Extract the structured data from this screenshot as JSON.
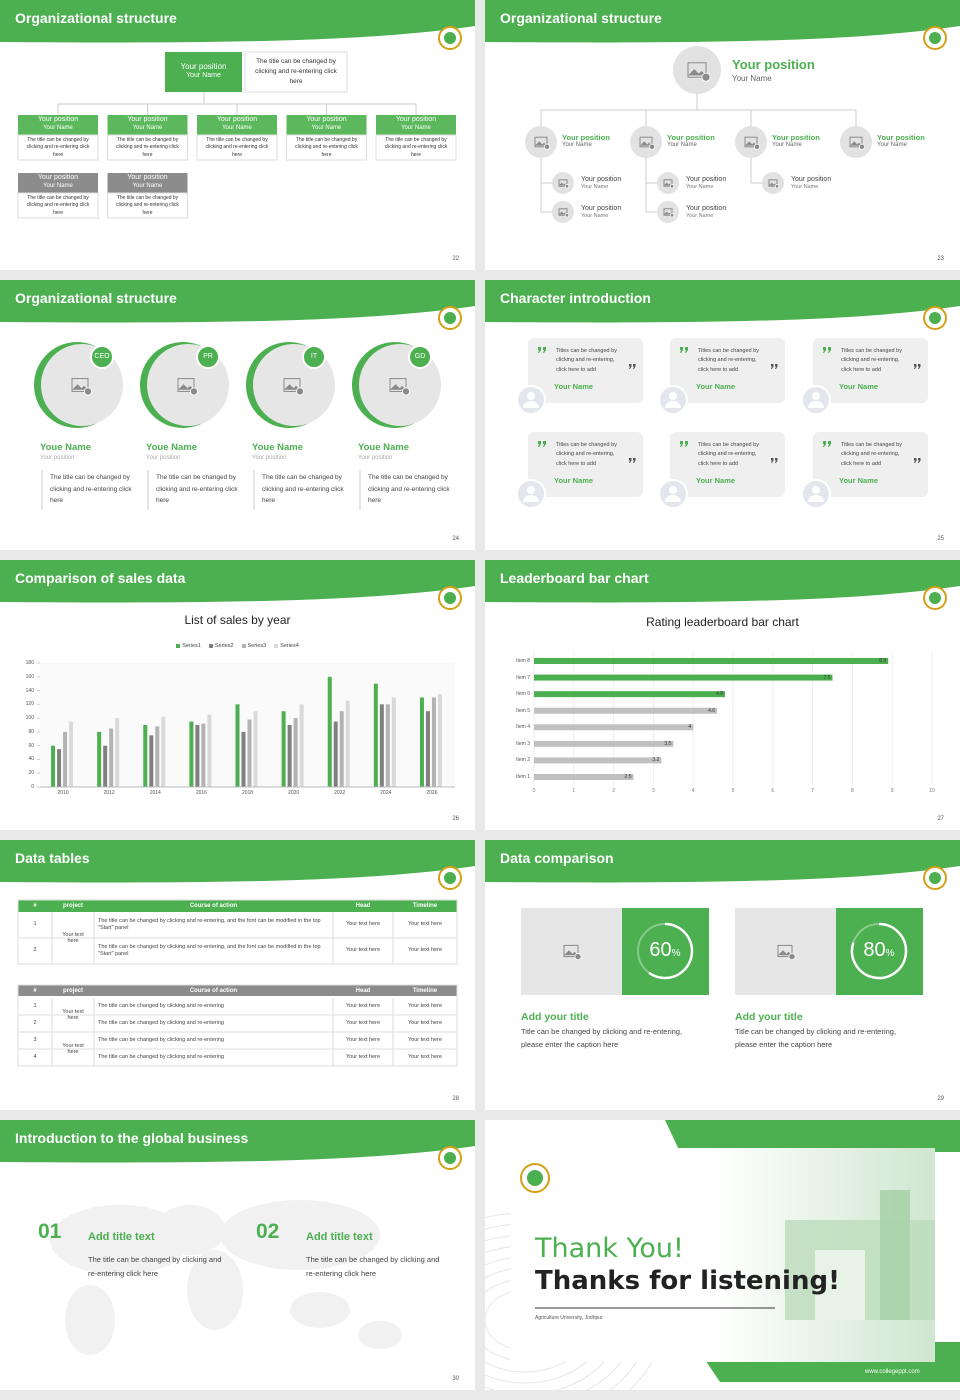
{
  "slides": [
    {
      "title": "Organizational structure",
      "page": "22",
      "top": {
        "position": "Your position",
        "name": "Your Name",
        "text": "The title can be changed by clicking and re-entering click here"
      },
      "green_boxes": [
        {
          "position": "Your position",
          "name": "Your Name",
          "text": "The title can be changed by clicking and re-entering click here"
        },
        {
          "position": "Your position",
          "name": "Your Name",
          "text": "The title can be changed by clicking and re-entering click here"
        },
        {
          "position": "Your position",
          "name": "Your Name",
          "text": "The title can be changed by clicking and re-entering click here"
        },
        {
          "position": "Your position",
          "name": "Your Name",
          "text": "The title can be changed by clicking and re-entering click here"
        },
        {
          "position": "Your position",
          "name": "Your Name",
          "text": "The title can be changed by clicking and re-entering click here"
        }
      ],
      "gray_boxes": [
        {
          "position": "Your position",
          "name": "Your Name",
          "text": "The title can be changed by clicking and re-entering click here"
        },
        {
          "position": "Your position",
          "name": "Your Name",
          "text": "The title can be changed by clicking and re-entering click here"
        }
      ]
    },
    {
      "title": "Organizational structure",
      "page": "23",
      "top": {
        "position": "Your position",
        "name": "Your Name"
      },
      "level2": [
        {
          "position": "Your position",
          "name": "Your Name"
        },
        {
          "position": "Your position",
          "name": "Your Name"
        },
        {
          "position": "Your position",
          "name": "Your Name"
        },
        {
          "position": "Your position",
          "name": "Your Name"
        }
      ],
      "level3": [
        {
          "position": "Your position",
          "name": "Your Name"
        },
        {
          "position": "Your position",
          "name": "Your Name"
        },
        {
          "position": "Your position",
          "name": "Your Name"
        },
        {
          "position": "Your position",
          "name": "Your Name"
        },
        {
          "position": "Your position",
          "name": "Your Name"
        }
      ]
    },
    {
      "title": "Organizational structure",
      "page": "24",
      "members": [
        {
          "badge": "CEO",
          "name": "Youe Name",
          "position": "Your position",
          "text": "The title can be changed by clicking and re-entering click here"
        },
        {
          "badge": "PR",
          "name": "Youe Name",
          "position": "Your position",
          "text": "The title can be changed by clicking and re-entering click here"
        },
        {
          "badge": "IT",
          "name": "Youe Name",
          "position": "Your position",
          "text": "The title can be changed by clicking and re-entering click here"
        },
        {
          "badge": "GD",
          "name": "Youe Name",
          "position": "Your position",
          "text": "The title can be changed by clicking and re-entering click here"
        }
      ]
    },
    {
      "title": "Character introduction",
      "page": "25",
      "cards": [
        {
          "text": "Titles can be changed by clicking and re-entering, click here to add",
          "name": "Your Name"
        },
        {
          "text": "Titles can be changed by clicking and re-entering, click here to add",
          "name": "Your Name"
        },
        {
          "text": "Titles can be changed by clicking and re-entering, click here to add",
          "name": "Your Name"
        },
        {
          "text": "Titles can be changed by clicking and re-entering, click here to add",
          "name": "Your Name"
        },
        {
          "text": "Titles can be changed by clicking and re-entering, click here to add",
          "name": "Your Name"
        },
        {
          "text": "Titles can be changed by clicking and re-entering, click here to add",
          "name": "Your Name"
        }
      ]
    },
    {
      "title": "Comparison of sales data",
      "page": "26",
      "chart": {
        "type": "bar",
        "title": "List of sales by year",
        "categories": [
          "2010",
          "2012",
          "2014",
          "2016",
          "2018",
          "2020",
          "2022",
          "2024",
          "2026"
        ],
        "series": [
          {
            "name": "Series1",
            "color": "#4caf50",
            "values": [
              60,
              80,
              90,
              95,
              120,
              110,
              160,
              150,
              130
            ]
          },
          {
            "name": "Series2",
            "color": "#808080",
            "values": [
              55,
              60,
              75,
              90,
              80,
              90,
              95,
              120,
              110
            ]
          },
          {
            "name": "Series3",
            "color": "#b3b3b3",
            "values": [
              80,
              85,
              88,
              92,
              98,
              100,
              110,
              120,
              130
            ]
          },
          {
            "name": "Series4",
            "color": "#d9d9d9",
            "values": [
              95,
              100,
              102,
              105,
              110,
              120,
              125,
              130,
              135
            ]
          }
        ],
        "ylim": [
          0,
          180
        ],
        "yticks": [
          0,
          20,
          40,
          60,
          80,
          100,
          120,
          140,
          160,
          180
        ]
      }
    },
    {
      "title": "Leaderboard bar chart",
      "page": "27",
      "chart": {
        "type": "bar",
        "orientation": "horizontal",
        "title": "Rating leaderboard bar chart",
        "categories": [
          "Item 1",
          "Item 2",
          "Item 3",
          "Item 4",
          "Item 5",
          "Item 6",
          "Item 7",
          "Item 8"
        ],
        "values": [
          2.5,
          3.2,
          3.5,
          4,
          4.6,
          4.8,
          7.5,
          8.9
        ],
        "colors": [
          "#c0c0c0",
          "#c0c0c0",
          "#c0c0c0",
          "#c0c0c0",
          "#c0c0c0",
          "#4caf50",
          "#4caf50",
          "#4caf50"
        ],
        "xlim": [
          0,
          10
        ],
        "xticks": [
          0,
          1,
          2,
          3,
          4,
          5,
          6,
          7,
          8,
          9,
          10
        ],
        "grid": true
      }
    },
    {
      "title": "Data tables",
      "page": "28",
      "tables": [
        {
          "header": [
            "#",
            "project",
            "Course of action",
            "Head",
            "Timeline"
          ],
          "groups": [
            {
              "project": "Your text here",
              "rows": [
                [
                  "1",
                  "The title can be changed by clicking and re-entering, and the font can be modified in the top \"Start\" panel",
                  "Your text here",
                  "Your text here"
                ],
                [
                  "2",
                  "The title can be changed by clicking and re-entering, and the font can be modified in the top \"Start\" panel",
                  "Your text here",
                  "Your text here"
                ]
              ]
            }
          ]
        },
        {
          "header": [
            "#",
            "project",
            "Course of action",
            "Head",
            "Timeline"
          ],
          "groups": [
            {
              "project": "Your text here",
              "rows": [
                [
                  "1",
                  "The title can be changed by clicking and re-entering",
                  "Your text here",
                  "Your text here"
                ],
                [
                  "2",
                  "The title can be changed by clicking and re-entering",
                  "Your text here",
                  "Your text here"
                ]
              ]
            },
            {
              "project": "Your text here",
              "rows": [
                [
                  "3",
                  "The title can be changed by clicking and re-entering",
                  "Your text here",
                  "Your text here"
                ],
                [
                  "4",
                  "The title can be changed by clicking and re-entering",
                  "Your text here",
                  "Your text here"
                ]
              ]
            }
          ]
        }
      ]
    },
    {
      "title": "Data comparison",
      "page": "29",
      "items": [
        {
          "value": 60,
          "unit": "%",
          "title": "Add your title",
          "text": "Title can be changed by clicking and re-entering, please enter the caption here"
        },
        {
          "value": 80,
          "unit": "%",
          "title": "Add your title",
          "text": "Title can be changed by clicking and re-entering, please enter the caption here"
        }
      ]
    },
    {
      "title": "Introduction to the global business",
      "page": "30",
      "items": [
        {
          "number": "01",
          "title": "Add title text",
          "text": "The title can be changed by clicking and re-entering click here"
        },
        {
          "number": "02",
          "title": "Add title text",
          "text": "The title can be changed by clicking and re-entering click here"
        }
      ]
    },
    {
      "thanks": "Thank You!",
      "subtitle": "Thanks for listening!",
      "university": "Agriculture University, Jodhpur",
      "url": "www.collegeppt.com"
    }
  ]
}
